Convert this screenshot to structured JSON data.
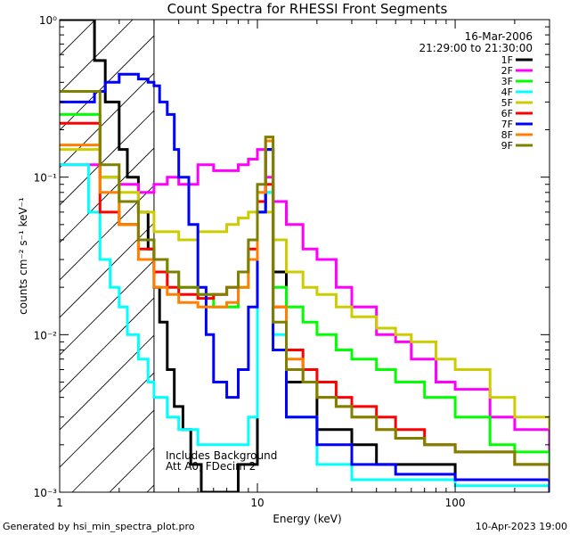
{
  "chart_data": {
    "type": "line",
    "title": "Count Spectra for RHESSI Front Segments",
    "xlabel": "Energy (keV)",
    "ylabel": "counts cm⁻² s⁻¹ keV⁻¹",
    "xscale": "log",
    "yscale": "log",
    "xlim": [
      1,
      300
    ],
    "ylim": [
      0.001,
      1
    ],
    "x_tick_labels": [
      "1",
      "10",
      "100"
    ],
    "y_tick_labels": [
      "10⁻³",
      "10⁻²",
      "10⁻¹",
      "10⁰"
    ],
    "legend_position": "top-right",
    "date": "16-Mar-2006",
    "time_range": "21:29:00 to 21:30:00",
    "annotations": [
      "Includes Background",
      "Att A0, FDecim 2"
    ],
    "hatched_region_keV": [
      1,
      3
    ],
    "series": [
      {
        "name": "1F",
        "color": "#000000",
        "points": [
          [
            1.0,
            1.0
          ],
          [
            1.3,
            1.0
          ],
          [
            1.5,
            0.55
          ],
          [
            1.7,
            0.3
          ],
          [
            2.0,
            0.15
          ],
          [
            2.2,
            0.1
          ],
          [
            2.5,
            0.06
          ],
          [
            2.8,
            0.035
          ],
          [
            3.0,
            0.02
          ],
          [
            3.2,
            0.012
          ],
          [
            3.5,
            0.006
          ],
          [
            3.8,
            0.0035
          ],
          [
            4.2,
            0.0025
          ],
          [
            4.6,
            0.0015
          ],
          [
            5.2,
            0.001
          ],
          [
            6,
            0.001
          ],
          [
            8,
            0.0015
          ],
          [
            10,
            0.06
          ],
          [
            11,
            0.15
          ],
          [
            12,
            0.025
          ],
          [
            14,
            0.005
          ],
          [
            20,
            0.0025
          ],
          [
            30,
            0.002
          ],
          [
            40,
            0.0015
          ],
          [
            60,
            0.0015
          ],
          [
            100,
            0.0012
          ],
          [
            200,
            0.0012
          ],
          [
            300,
            0.001
          ]
        ]
      },
      {
        "name": "2F",
        "color": "#ff00ff",
        "points": [
          [
            1.0,
            0.12
          ],
          [
            1.3,
            0.12
          ],
          [
            1.6,
            0.1
          ],
          [
            2.0,
            0.09
          ],
          [
            2.5,
            0.08
          ],
          [
            3.0,
            0.09
          ],
          [
            3.5,
            0.1
          ],
          [
            4.0,
            0.09
          ],
          [
            5.0,
            0.12
          ],
          [
            6.0,
            0.11
          ],
          [
            7.0,
            0.11
          ],
          [
            8.0,
            0.12
          ],
          [
            9.0,
            0.13
          ],
          [
            10.0,
            0.15
          ],
          [
            11.0,
            0.1
          ],
          [
            12.0,
            0.07
          ],
          [
            14.0,
            0.05
          ],
          [
            17.0,
            0.035
          ],
          [
            20.0,
            0.03
          ],
          [
            25.0,
            0.02
          ],
          [
            30.0,
            0.015
          ],
          [
            40.0,
            0.01
          ],
          [
            50.0,
            0.009
          ],
          [
            60.0,
            0.007
          ],
          [
            80.0,
            0.005
          ],
          [
            100.0,
            0.0045
          ],
          [
            150.0,
            0.003
          ],
          [
            200.0,
            0.0025
          ],
          [
            300.0,
            0.0015
          ]
        ]
      },
      {
        "name": "3F",
        "color": "#00ff00",
        "points": [
          [
            1.0,
            0.25
          ],
          [
            1.3,
            0.25
          ],
          [
            1.6,
            0.1
          ],
          [
            2.0,
            0.05
          ],
          [
            2.5,
            0.04
          ],
          [
            3.0,
            0.03
          ],
          [
            3.5,
            0.025
          ],
          [
            4.0,
            0.02
          ],
          [
            5.0,
            0.018
          ],
          [
            6.0,
            0.015
          ],
          [
            7.0,
            0.015
          ],
          [
            8.0,
            0.02
          ],
          [
            9.0,
            0.03
          ],
          [
            10.0,
            0.07
          ],
          [
            11.0,
            0.08
          ],
          [
            12.0,
            0.02
          ],
          [
            14.0,
            0.015
          ],
          [
            17.0,
            0.012
          ],
          [
            20.0,
            0.01
          ],
          [
            25.0,
            0.008
          ],
          [
            30.0,
            0.007
          ],
          [
            40.0,
            0.006
          ],
          [
            50.0,
            0.005
          ],
          [
            70.0,
            0.004
          ],
          [
            100.0,
            0.003
          ],
          [
            150.0,
            0.002
          ],
          [
            200.0,
            0.0018
          ],
          [
            300.0,
            0.0015
          ]
        ]
      },
      {
        "name": "4F",
        "color": "#00ffff",
        "points": [
          [
            1.0,
            0.12
          ],
          [
            1.3,
            0.12
          ],
          [
            1.4,
            0.06
          ],
          [
            1.6,
            0.03
          ],
          [
            1.8,
            0.02
          ],
          [
            2.0,
            0.015
          ],
          [
            2.2,
            0.01
          ],
          [
            2.5,
            0.007
          ],
          [
            2.8,
            0.005
          ],
          [
            3.0,
            0.004
          ],
          [
            3.5,
            0.003
          ],
          [
            4.0,
            0.0025
          ],
          [
            5.0,
            0.002
          ],
          [
            7.0,
            0.002
          ],
          [
            9.0,
            0.003
          ],
          [
            10.0,
            0.06
          ],
          [
            11.0,
            0.08
          ],
          [
            12.0,
            0.01
          ],
          [
            14.0,
            0.003
          ],
          [
            20.0,
            0.0015
          ],
          [
            30.0,
            0.0012
          ],
          [
            50.0,
            0.0012
          ],
          [
            100.0,
            0.0011
          ],
          [
            300.0,
            0.001
          ]
        ]
      },
      {
        "name": "5F",
        "color": "#cccc00",
        "points": [
          [
            1.0,
            0.15
          ],
          [
            1.3,
            0.15
          ],
          [
            1.6,
            0.1
          ],
          [
            2.0,
            0.08
          ],
          [
            2.5,
            0.06
          ],
          [
            3.0,
            0.045
          ],
          [
            3.5,
            0.045
          ],
          [
            4.0,
            0.04
          ],
          [
            5.0,
            0.045
          ],
          [
            6.0,
            0.045
          ],
          [
            7.0,
            0.05
          ],
          [
            8.0,
            0.055
          ],
          [
            9.0,
            0.06
          ],
          [
            10.0,
            0.07
          ],
          [
            11.0,
            0.06
          ],
          [
            12.0,
            0.04
          ],
          [
            14.0,
            0.025
          ],
          [
            17.0,
            0.02
          ],
          [
            20.0,
            0.018
          ],
          [
            25.0,
            0.015
          ],
          [
            30.0,
            0.013
          ],
          [
            40.0,
            0.011
          ],
          [
            50.0,
            0.01
          ],
          [
            60.0,
            0.009
          ],
          [
            80.0,
            0.007
          ],
          [
            100.0,
            0.006
          ],
          [
            150.0,
            0.004
          ],
          [
            200.0,
            0.003
          ],
          [
            300.0,
            0.0025
          ]
        ]
      },
      {
        "name": "6F",
        "color": "#ff0000",
        "points": [
          [
            1.0,
            0.22
          ],
          [
            1.3,
            0.22
          ],
          [
            1.6,
            0.06
          ],
          [
            2.0,
            0.05
          ],
          [
            2.5,
            0.035
          ],
          [
            3.0,
            0.025
          ],
          [
            3.5,
            0.02
          ],
          [
            4.0,
            0.018
          ],
          [
            5.0,
            0.017
          ],
          [
            6.0,
            0.018
          ],
          [
            7.0,
            0.02
          ],
          [
            8.0,
            0.025
          ],
          [
            9.0,
            0.035
          ],
          [
            10.0,
            0.07
          ],
          [
            11.0,
            0.09
          ],
          [
            12.0,
            0.015
          ],
          [
            14.0,
            0.008
          ],
          [
            17.0,
            0.006
          ],
          [
            20.0,
            0.005
          ],
          [
            25.0,
            0.004
          ],
          [
            30.0,
            0.0035
          ],
          [
            40.0,
            0.003
          ],
          [
            50.0,
            0.0025
          ],
          [
            70.0,
            0.002
          ],
          [
            100.0,
            0.0018
          ],
          [
            200.0,
            0.0015
          ],
          [
            300.0,
            0.0012
          ]
        ]
      },
      {
        "name": "7F",
        "color": "#0000ff",
        "points": [
          [
            1.0,
            0.3
          ],
          [
            1.3,
            0.3
          ],
          [
            1.5,
            0.35
          ],
          [
            1.7,
            0.4
          ],
          [
            2.0,
            0.45
          ],
          [
            2.3,
            0.45
          ],
          [
            2.5,
            0.42
          ],
          [
            2.8,
            0.4
          ],
          [
            3.0,
            0.38
          ],
          [
            3.2,
            0.3
          ],
          [
            3.5,
            0.25
          ],
          [
            3.8,
            0.15
          ],
          [
            4.0,
            0.1
          ],
          [
            4.5,
            0.05
          ],
          [
            5.0,
            0.02
          ],
          [
            5.5,
            0.01
          ],
          [
            6.0,
            0.005
          ],
          [
            7.0,
            0.004
          ],
          [
            8.0,
            0.006
          ],
          [
            9.0,
            0.015
          ],
          [
            10.0,
            0.06
          ],
          [
            11.0,
            0.15
          ],
          [
            12.0,
            0.008
          ],
          [
            14.0,
            0.003
          ],
          [
            20.0,
            0.002
          ],
          [
            30.0,
            0.0015
          ],
          [
            50.0,
            0.0013
          ],
          [
            100.0,
            0.0012
          ],
          [
            300.0,
            0.001
          ]
        ]
      },
      {
        "name": "8F",
        "color": "#ff8000",
        "points": [
          [
            1.0,
            0.16
          ],
          [
            1.3,
            0.16
          ],
          [
            1.6,
            0.08
          ],
          [
            2.0,
            0.05
          ],
          [
            2.5,
            0.03
          ],
          [
            3.0,
            0.02
          ],
          [
            3.5,
            0.018
          ],
          [
            4.0,
            0.016
          ],
          [
            5.0,
            0.015
          ],
          [
            6.0,
            0.015
          ],
          [
            7.0,
            0.016
          ],
          [
            8.0,
            0.02
          ],
          [
            9.0,
            0.03
          ],
          [
            10.0,
            0.08
          ],
          [
            11.0,
            0.17
          ],
          [
            12.0,
            0.015
          ],
          [
            14.0,
            0.007
          ],
          [
            17.0,
            0.005
          ],
          [
            20.0,
            0.004
          ],
          [
            25.0,
            0.0035
          ],
          [
            30.0,
            0.003
          ],
          [
            40.0,
            0.0025
          ],
          [
            50.0,
            0.0022
          ],
          [
            70.0,
            0.002
          ],
          [
            100.0,
            0.0018
          ],
          [
            200.0,
            0.0015
          ],
          [
            300.0,
            0.0012
          ]
        ]
      },
      {
        "name": "9F",
        "color": "#808000",
        "points": [
          [
            1.0,
            0.35
          ],
          [
            1.3,
            0.35
          ],
          [
            1.6,
            0.12
          ],
          [
            2.0,
            0.07
          ],
          [
            2.5,
            0.04
          ],
          [
            3.0,
            0.03
          ],
          [
            3.5,
            0.025
          ],
          [
            4.0,
            0.02
          ],
          [
            5.0,
            0.018
          ],
          [
            6.0,
            0.018
          ],
          [
            7.0,
            0.02
          ],
          [
            8.0,
            0.025
          ],
          [
            9.0,
            0.04
          ],
          [
            10.0,
            0.09
          ],
          [
            11.0,
            0.18
          ],
          [
            12.0,
            0.012
          ],
          [
            14.0,
            0.006
          ],
          [
            17.0,
            0.005
          ],
          [
            20.0,
            0.004
          ],
          [
            25.0,
            0.0035
          ],
          [
            30.0,
            0.003
          ],
          [
            40.0,
            0.0025
          ],
          [
            50.0,
            0.0022
          ],
          [
            70.0,
            0.002
          ],
          [
            100.0,
            0.0018
          ],
          [
            200.0,
            0.0015
          ],
          [
            300.0,
            0.0012
          ]
        ]
      }
    ]
  },
  "footer": {
    "left": "Generated by hsi_min_spectra_plot.pro",
    "right": "10-Apr-2023 19:00"
  }
}
